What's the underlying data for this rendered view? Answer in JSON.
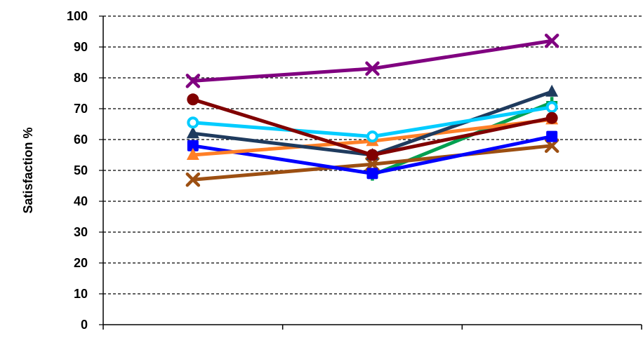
{
  "chart_data": {
    "type": "line",
    "title": "",
    "xlabel": "",
    "ylabel": "Satisfaction %",
    "ylim": [
      0,
      100
    ],
    "yticks": [
      0,
      10,
      20,
      30,
      40,
      50,
      60,
      70,
      80,
      90,
      100
    ],
    "x_positions": [
      1,
      2,
      3
    ],
    "grid": "horizontal dashed",
    "series": [
      {
        "color": "#800080",
        "marker": "x",
        "values": [
          79,
          83,
          92
        ]
      },
      {
        "color": "#800000",
        "marker": "circle",
        "values": [
          73,
          55,
          67
        ]
      },
      {
        "color": "#00ccff",
        "marker": "circle-open",
        "values": [
          65.5,
          61,
          70.5
        ]
      },
      {
        "color": "#1f3b5e",
        "marker": "triangle",
        "values": [
          62,
          55,
          75.5
        ]
      },
      {
        "color": "#ff7f27",
        "marker": "triangle",
        "values": [
          55,
          59.5,
          66.5
        ]
      },
      {
        "color": "#0000ff",
        "marker": "square",
        "values": [
          58,
          49,
          61
        ]
      },
      {
        "color": "#9c4f12",
        "marker": "x",
        "values": [
          47,
          52,
          58
        ]
      },
      {
        "color": "#00a050",
        "marker": "plus",
        "values": [
          null,
          48.5,
          72
        ]
      }
    ]
  }
}
